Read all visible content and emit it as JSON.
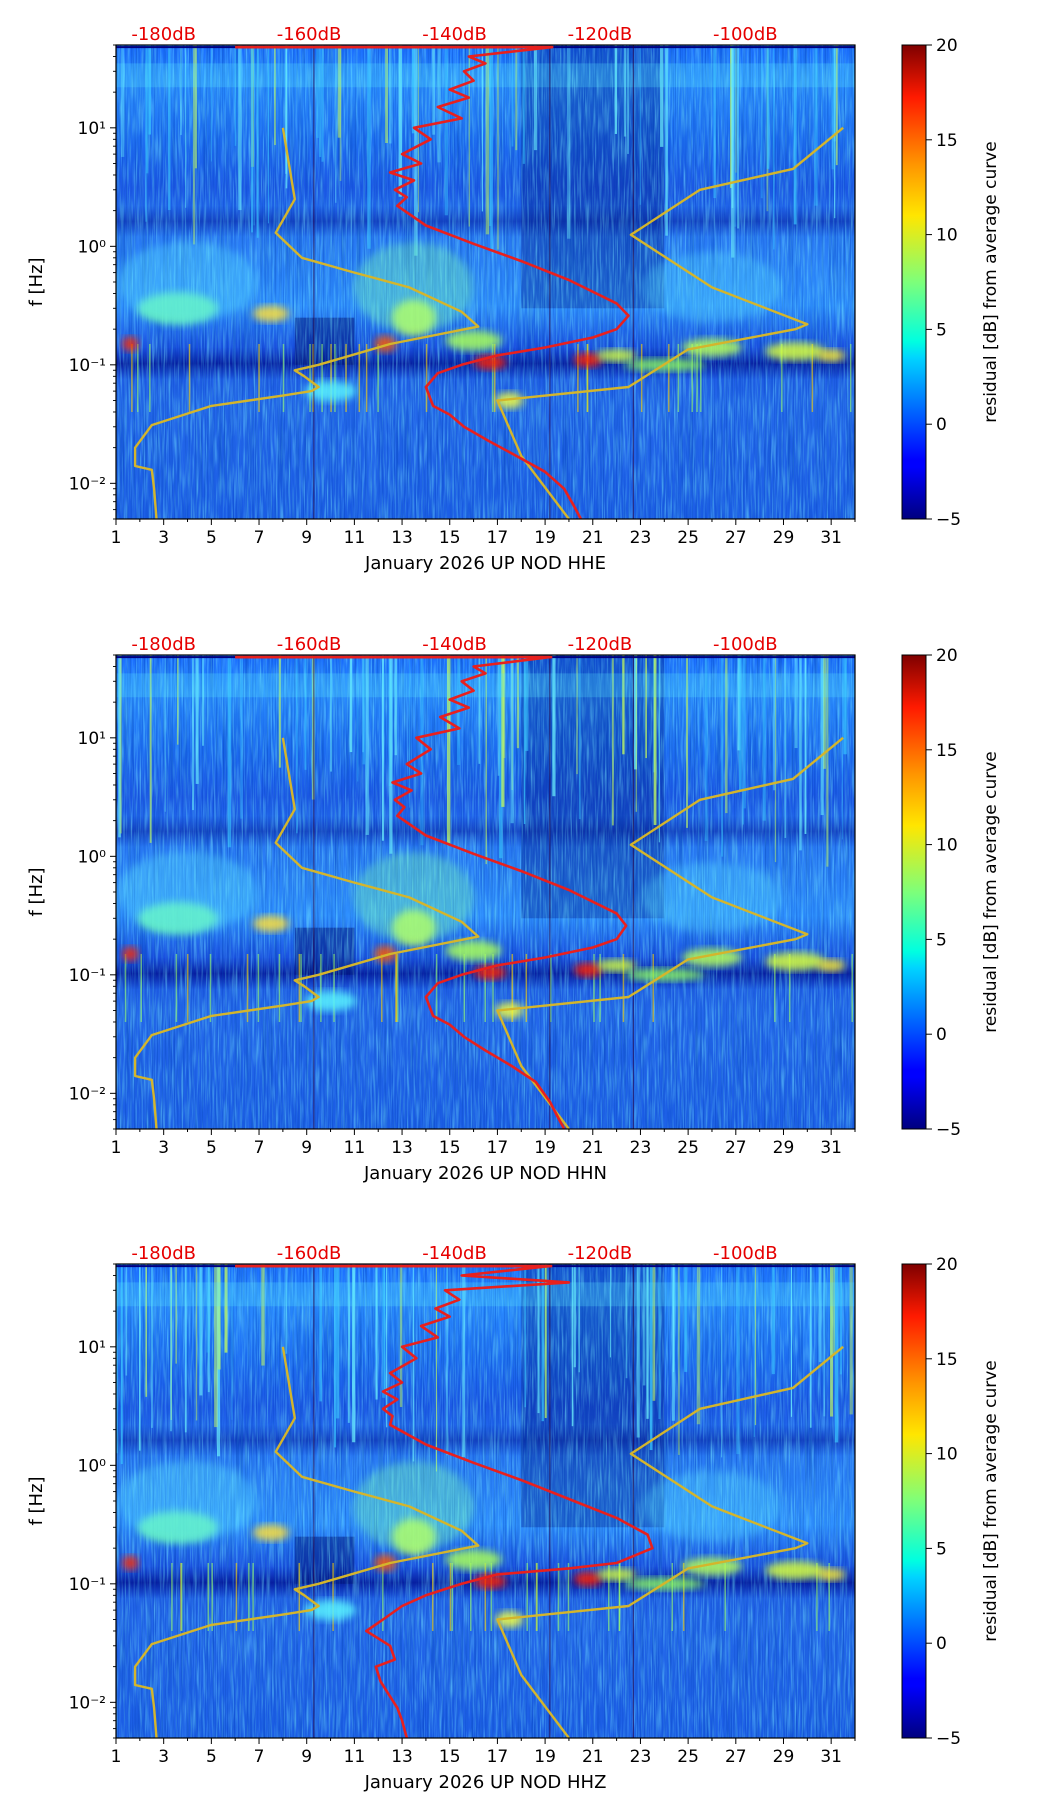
{
  "chart_data": [
    {
      "type": "heatmap",
      "xlabel": "January 2026 UP NOD  HHE",
      "ylabel": "f [Hz]",
      "colorbar_label": "residual [dB] from average curve",
      "colorbar_ticks": [
        "−5",
        "0",
        "5",
        "10",
        "15",
        "20"
      ],
      "x_ticks": [
        "1",
        "3",
        "5",
        "7",
        "9",
        "11",
        "13",
        "15",
        "17",
        "19",
        "21",
        "23",
        "25",
        "27",
        "29",
        "31"
      ],
      "y_ticks": [
        "10⁻²",
        "10⁻¹",
        "10⁰",
        "10¹"
      ],
      "db_ticks": [
        "-180dB",
        "-160dB",
        "-140dB",
        "-120dB",
        "-100dB"
      ],
      "xlim": [
        1,
        32
      ],
      "ylim": [
        0.005,
        50
      ],
      "clim": [
        -5,
        20
      ],
      "curves": [
        {
          "name": "model-low",
          "color": "#d4b52c",
          "points": [
            [
              2.7,
              0.005
            ],
            [
              2.6,
              0.009
            ],
            [
              2.5,
              0.013
            ],
            [
              1.8,
              0.014
            ],
            [
              1.8,
              0.02
            ],
            [
              2.5,
              0.031
            ],
            [
              5,
              0.045
            ],
            [
              8,
              0.055
            ],
            [
              9.2,
              0.06
            ],
            [
              9.5,
              0.065
            ],
            [
              8.9,
              0.08
            ],
            [
              8.5,
              0.09
            ],
            [
              9.5,
              0.1
            ],
            [
              12.5,
              0.15
            ],
            [
              16.2,
              0.21
            ],
            [
              15.5,
              0.28
            ],
            [
              13.3,
              0.45
            ],
            [
              11,
              0.6
            ],
            [
              8.8,
              0.8
            ],
            [
              7.7,
              1.3
            ],
            [
              8.5,
              2.5
            ],
            [
              8,
              10
            ]
          ]
        },
        {
          "name": "model-high",
          "color": "#d4b52c",
          "points": [
            [
              20,
              0.005
            ],
            [
              18,
              0.017
            ],
            [
              17,
              0.05
            ],
            [
              22.5,
              0.065
            ],
            [
              25,
              0.135
            ],
            [
              29.5,
              0.2
            ],
            [
              30,
              0.22
            ],
            [
              26,
              0.45
            ],
            [
              22.6,
              1.25
            ],
            [
              25.5,
              3
            ],
            [
              29.4,
              4.5
            ],
            [
              31.5,
              10
            ]
          ]
        },
        {
          "name": "median-psd",
          "color": "#e8201e",
          "points": [
            [
              6,
              48
            ],
            [
              9,
              48
            ],
            [
              11,
              48
            ],
            [
              14,
              48
            ],
            [
              15,
              48
            ],
            [
              17,
              48
            ],
            [
              18,
              48
            ],
            [
              19.3,
              48
            ],
            [
              15.8,
              40
            ],
            [
              16.5,
              35
            ],
            [
              15.6,
              30
            ],
            [
              16,
              25
            ],
            [
              15,
              21
            ],
            [
              15.8,
              18
            ],
            [
              14.5,
              15
            ],
            [
              15.5,
              12
            ],
            [
              13.5,
              10
            ],
            [
              14.2,
              8
            ],
            [
              13,
              6
            ],
            [
              13.8,
              5
            ],
            [
              12.5,
              4.2
            ],
            [
              13.5,
              3.6
            ],
            [
              12.7,
              3
            ],
            [
              13.2,
              2.6
            ],
            [
              12.8,
              2.2
            ],
            [
              14,
              1.5
            ],
            [
              16,
              1.05
            ],
            [
              18,
              0.75
            ],
            [
              20,
              0.52
            ],
            [
              22,
              0.33
            ],
            [
              22.5,
              0.26
            ],
            [
              22,
              0.2
            ],
            [
              21,
              0.17
            ],
            [
              19,
              0.14
            ],
            [
              17,
              0.12
            ],
            [
              15.5,
              0.1
            ],
            [
              14.5,
              0.085
            ],
            [
              14,
              0.065
            ],
            [
              14.3,
              0.045
            ],
            [
              15,
              0.038
            ],
            [
              15.6,
              0.03
            ],
            [
              16.6,
              0.023
            ],
            [
              17.8,
              0.017
            ],
            [
              19,
              0.0125
            ],
            [
              19.8,
              0.009
            ],
            [
              20.2,
              0.0065
            ],
            [
              20.5,
              0.005
            ]
          ]
        }
      ]
    },
    {
      "type": "heatmap",
      "xlabel": "January 2026 UP NOD  HHN",
      "ylabel": "f [Hz]",
      "colorbar_label": "residual [dB] from average curve",
      "colorbar_ticks": [
        "−5",
        "0",
        "5",
        "10",
        "15",
        "20"
      ],
      "x_ticks": [
        "1",
        "3",
        "5",
        "7",
        "9",
        "11",
        "13",
        "15",
        "17",
        "19",
        "21",
        "23",
        "25",
        "27",
        "29",
        "31"
      ],
      "y_ticks": [
        "10⁻²",
        "10⁻¹",
        "10⁰",
        "10¹"
      ],
      "db_ticks": [
        "-180dB",
        "-160dB",
        "-140dB",
        "-120dB",
        "-100dB"
      ],
      "xlim": [
        1,
        32
      ],
      "ylim": [
        0.005,
        50
      ],
      "clim": [
        -5,
        20
      ],
      "curves": [
        {
          "name": "model-low",
          "color": "#d4b52c",
          "points": [
            [
              2.7,
              0.005
            ],
            [
              2.6,
              0.009
            ],
            [
              2.5,
              0.013
            ],
            [
              1.8,
              0.014
            ],
            [
              1.8,
              0.02
            ],
            [
              2.5,
              0.031
            ],
            [
              5,
              0.045
            ],
            [
              8,
              0.055
            ],
            [
              9.2,
              0.06
            ],
            [
              9.5,
              0.065
            ],
            [
              8.9,
              0.08
            ],
            [
              8.5,
              0.09
            ],
            [
              9.5,
              0.1
            ],
            [
              12.5,
              0.15
            ],
            [
              16.2,
              0.21
            ],
            [
              15.5,
              0.28
            ],
            [
              13.3,
              0.45
            ],
            [
              11,
              0.6
            ],
            [
              8.8,
              0.8
            ],
            [
              7.7,
              1.3
            ],
            [
              8.5,
              2.5
            ],
            [
              8,
              10
            ]
          ]
        },
        {
          "name": "model-high",
          "color": "#d4b52c",
          "points": [
            [
              20,
              0.005
            ],
            [
              18,
              0.017
            ],
            [
              17,
              0.05
            ],
            [
              22.5,
              0.065
            ],
            [
              25,
              0.135
            ],
            [
              29.5,
              0.2
            ],
            [
              30,
              0.22
            ],
            [
              26,
              0.45
            ],
            [
              22.6,
              1.25
            ],
            [
              25.5,
              3
            ],
            [
              29.4,
              4.5
            ],
            [
              31.5,
              10
            ]
          ]
        },
        {
          "name": "median-psd",
          "color": "#e8201e",
          "points": [
            [
              6,
              48
            ],
            [
              9,
              48
            ],
            [
              12,
              48
            ],
            [
              15,
              48
            ],
            [
              18,
              48
            ],
            [
              19.2,
              48
            ],
            [
              16,
              40
            ],
            [
              16.5,
              35
            ],
            [
              15.5,
              30
            ],
            [
              16,
              25
            ],
            [
              15,
              21
            ],
            [
              15.8,
              18
            ],
            [
              14.6,
              15
            ],
            [
              15.4,
              12
            ],
            [
              13.6,
              10
            ],
            [
              14.2,
              8
            ],
            [
              13.2,
              6
            ],
            [
              13.8,
              5
            ],
            [
              12.6,
              4.2
            ],
            [
              13.4,
              3.6
            ],
            [
              12.7,
              3
            ],
            [
              13.1,
              2.6
            ],
            [
              12.8,
              2.2
            ],
            [
              14,
              1.5
            ],
            [
              16,
              1.05
            ],
            [
              18,
              0.75
            ],
            [
              20,
              0.52
            ],
            [
              22,
              0.33
            ],
            [
              22.4,
              0.26
            ],
            [
              22,
              0.2
            ],
            [
              21,
              0.17
            ],
            [
              19,
              0.14
            ],
            [
              17,
              0.12
            ],
            [
              15.5,
              0.1
            ],
            [
              14.5,
              0.085
            ],
            [
              14,
              0.065
            ],
            [
              14.3,
              0.045
            ],
            [
              15,
              0.038
            ],
            [
              15.6,
              0.03
            ],
            [
              16.5,
              0.023
            ],
            [
              17.6,
              0.017
            ],
            [
              18.6,
              0.0125
            ],
            [
              19.2,
              0.0085
            ],
            [
              19.5,
              0.0065
            ],
            [
              19.8,
              0.005
            ]
          ]
        }
      ]
    },
    {
      "type": "heatmap",
      "xlabel": "January 2026 UP NOD  HHZ",
      "ylabel": "f [Hz]",
      "colorbar_label": "residual [dB] from average curve",
      "colorbar_ticks": [
        "−5",
        "0",
        "5",
        "10",
        "15",
        "20"
      ],
      "x_ticks": [
        "1",
        "3",
        "5",
        "7",
        "9",
        "11",
        "13",
        "15",
        "17",
        "19",
        "21",
        "23",
        "25",
        "27",
        "29",
        "31"
      ],
      "y_ticks": [
        "10⁻²",
        "10⁻¹",
        "10⁰",
        "10¹"
      ],
      "db_ticks": [
        "-180dB",
        "-160dB",
        "-140dB",
        "-120dB",
        "-100dB"
      ],
      "xlim": [
        1,
        32
      ],
      "ylim": [
        0.005,
        50
      ],
      "clim": [
        -5,
        20
      ],
      "curves": [
        {
          "name": "model-low",
          "color": "#d4b52c",
          "points": [
            [
              2.7,
              0.005
            ],
            [
              2.6,
              0.009
            ],
            [
              2.5,
              0.013
            ],
            [
              1.8,
              0.014
            ],
            [
              1.8,
              0.02
            ],
            [
              2.5,
              0.031
            ],
            [
              5,
              0.045
            ],
            [
              8,
              0.055
            ],
            [
              9.2,
              0.06
            ],
            [
              9.5,
              0.065
            ],
            [
              8.9,
              0.08
            ],
            [
              8.5,
              0.09
            ],
            [
              9.5,
              0.1
            ],
            [
              12.5,
              0.15
            ],
            [
              16.2,
              0.21
            ],
            [
              15.5,
              0.28
            ],
            [
              13.3,
              0.45
            ],
            [
              11,
              0.6
            ],
            [
              8.8,
              0.8
            ],
            [
              7.7,
              1.3
            ],
            [
              8.5,
              2.5
            ],
            [
              8,
              10
            ]
          ]
        },
        {
          "name": "model-high",
          "color": "#d4b52c",
          "points": [
            [
              20,
              0.005
            ],
            [
              18,
              0.017
            ],
            [
              17,
              0.05
            ],
            [
              22.5,
              0.065
            ],
            [
              25,
              0.135
            ],
            [
              29.5,
              0.2
            ],
            [
              30,
              0.22
            ],
            [
              26,
              0.45
            ],
            [
              22.6,
              1.25
            ],
            [
              25.5,
              3
            ],
            [
              29.4,
              4.5
            ],
            [
              31.5,
              10
            ]
          ]
        },
        {
          "name": "median-psd",
          "color": "#e8201e",
          "points": [
            [
              6,
              48
            ],
            [
              9,
              48
            ],
            [
              12,
              48
            ],
            [
              15,
              48
            ],
            [
              18,
              48
            ],
            [
              19.2,
              48
            ],
            [
              15.5,
              40
            ],
            [
              20,
              35
            ],
            [
              14.8,
              30
            ],
            [
              15.4,
              25
            ],
            [
              14.4,
              21
            ],
            [
              15,
              18
            ],
            [
              13.8,
              15
            ],
            [
              14.5,
              12
            ],
            [
              13,
              10
            ],
            [
              13.6,
              8
            ],
            [
              12.5,
              6
            ],
            [
              13,
              5
            ],
            [
              12.2,
              4.2
            ],
            [
              12.8,
              3.6
            ],
            [
              12.2,
              3
            ],
            [
              12.6,
              2.6
            ],
            [
              12.5,
              2.2
            ],
            [
              14,
              1.5
            ],
            [
              16,
              1.05
            ],
            [
              18,
              0.75
            ],
            [
              20,
              0.52
            ],
            [
              22,
              0.36
            ],
            [
              23.3,
              0.26
            ],
            [
              23.5,
              0.2
            ],
            [
              22,
              0.15
            ],
            [
              20,
              0.135
            ],
            [
              17,
              0.12
            ],
            [
              15.5,
              0.1
            ],
            [
              14,
              0.08
            ],
            [
              13,
              0.065
            ],
            [
              12.2,
              0.05
            ],
            [
              11.5,
              0.04
            ],
            [
              12.5,
              0.03
            ],
            [
              12.7,
              0.023
            ],
            [
              11.9,
              0.02
            ],
            [
              12.1,
              0.015
            ],
            [
              12.4,
              0.012
            ],
            [
              12.8,
              0.009
            ],
            [
              13,
              0.007
            ],
            [
              13.2,
              0.005
            ]
          ]
        }
      ]
    }
  ]
}
